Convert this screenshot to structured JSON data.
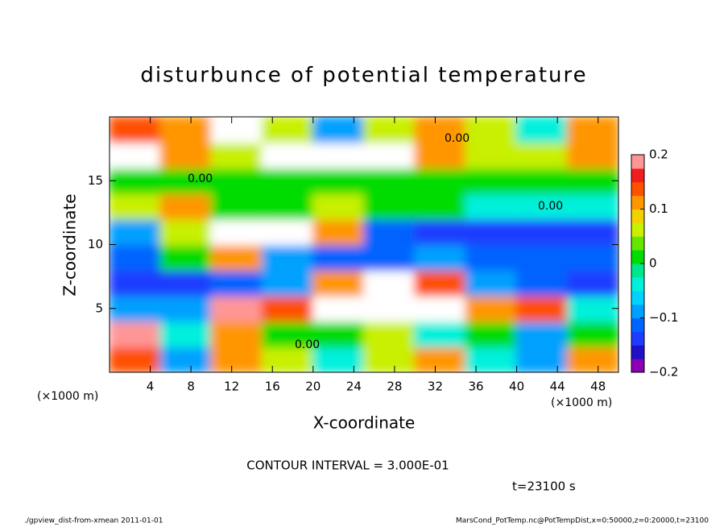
{
  "chart_data": {
    "type": "heatmap",
    "title": "disturbunce of potential temperature",
    "x_label": "X-coordinate",
    "y_label": "Z-coordinate",
    "x_unit": "(×1000 m)",
    "y_unit": "(×1000 m)",
    "xlim": [
      0,
      50
    ],
    "ylim": [
      0,
      20
    ],
    "xticks": [
      4,
      8,
      12,
      16,
      20,
      24,
      28,
      32,
      36,
      40,
      44,
      48
    ],
    "yticks": [
      5,
      10,
      15
    ],
    "z": [
      [
        0.15,
        -0.1,
        0.1,
        0.05,
        -0.05,
        0.05,
        0.1,
        -0.05,
        -0.1,
        0.1
      ],
      [
        0.2,
        -0.05,
        0.1,
        0.0,
        0.0,
        0.05,
        -0.05,
        0.0,
        -0.1,
        0.0
      ],
      [
        -0.08,
        -0.08,
        0.2,
        0.15,
        0.21,
        0.25,
        0.21,
        0.1,
        0.15,
        -0.05
      ],
      [
        -0.15,
        -0.15,
        -0.12,
        -0.1,
        0.1,
        0.21,
        0.15,
        -0.1,
        -0.12,
        -0.15
      ],
      [
        -0.12,
        0.0,
        0.1,
        -0.1,
        -0.12,
        -0.12,
        -0.1,
        -0.12,
        -0.12,
        -0.12
      ],
      [
        -0.1,
        0.05,
        0.21,
        0.25,
        0.1,
        -0.12,
        -0.15,
        -0.15,
        -0.15,
        -0.15
      ],
      [
        0.05,
        0.1,
        0.0,
        0.0,
        0.05,
        0.0,
        0.0,
        -0.03,
        -0.03,
        -0.03
      ],
      [
        0.02,
        0.0,
        0.0,
        0.0,
        0.0,
        0.0,
        0.0,
        0.0,
        0.0,
        0.0
      ],
      [
        0.25,
        0.1,
        0.05,
        0.21,
        0.25,
        0.25,
        0.1,
        0.05,
        0.05,
        0.1
      ],
      [
        0.15,
        0.1,
        0.21,
        0.05,
        -0.1,
        0.05,
        0.1,
        0.05,
        -0.05,
        0.1
      ]
    ],
    "colorbar_lim": [
      -0.2,
      0.2
    ],
    "colorbar_ticks": [
      {
        "value": 0.2,
        "label": "0.2"
      },
      {
        "value": 0.1,
        "label": "0.1"
      },
      0,
      {
        "value": -0.1,
        "label": "−0.1"
      },
      {
        "value": -0.2,
        "label": "−0.2"
      }
    ],
    "colorscale": [
      "#8c00b4",
      "#2010c8",
      "#1e3cff",
      "#0064ff",
      "#00a0ff",
      "#00d2ff",
      "#00f0dc",
      "#00e68c",
      "#00dc00",
      "#64e600",
      "#c8f000",
      "#f0d200",
      "#ff9600",
      "#ff5000",
      "#f01e1e",
      "#ff9696"
    ],
    "above_color": "#ffffff",
    "contour_labels": [
      "0.00",
      "0.00",
      "0.00",
      "0.00"
    ],
    "contour_interval": "CONTOUR INTERVAL = 3.000E-01",
    "time_label": "t=23100 s",
    "footer_left": "./gpview_dist-from-xmean  2011-01-01",
    "footer_right": "MarsCond_PotTemp.nc@PotTempDist,x=0:50000,z=0:20000,t=23100"
  }
}
